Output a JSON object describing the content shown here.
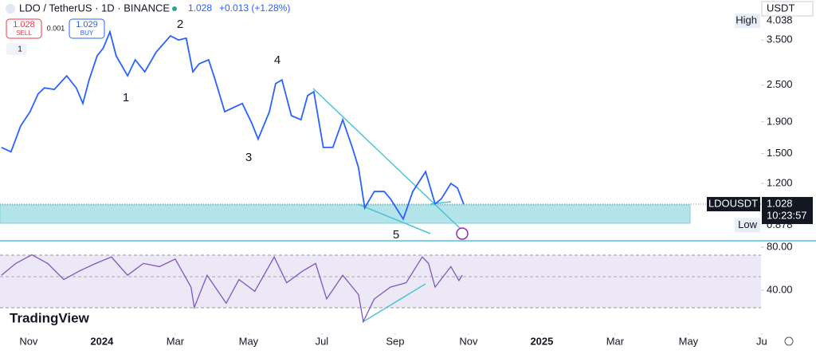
{
  "header": {
    "symbol": "LDO / TetherUS · 1D · BINANCE",
    "price": "1.028",
    "change": "+0.013 (+1.28%)",
    "sell_price": "1.028",
    "sell": "SELL",
    "spread": "0.001",
    "buy_price": "1.029",
    "buy": "BUY",
    "interval": "1",
    "currency": "USDT",
    "logo": "TradingView"
  },
  "chart_data": [
    {
      "type": "line",
      "log_scale": true,
      "grid": false,
      "color": "#2962ff",
      "x": [
        -0.74,
        -0.48,
        -0.22,
        0.04,
        0.26,
        0.43,
        0.7,
        1.04,
        1.3,
        1.48,
        1.65,
        1.87,
        2.04,
        2.22,
        2.39,
        2.7,
        2.91,
        3.17,
        3.48,
        3.87,
        4.09,
        4.3,
        4.48,
        4.65,
        4.91,
        5.09,
        5.35,
        5.57,
        5.83,
        6.09,
        6.26,
        6.57,
        6.74,
        6.91,
        7.17,
        7.43,
        7.61,
        7.78,
        8.04,
        8.3,
        8.57,
        8.83,
        9.0,
        9.17,
        9.43,
        9.7,
        9.87,
        10.22,
        10.48,
        10.83,
        11.09,
        11.26,
        11.52,
        11.7,
        11.87
      ],
      "values": [
        1.57,
        1.52,
        1.84,
        2.05,
        2.34,
        2.45,
        2.42,
        2.68,
        2.45,
        2.18,
        2.6,
        3.11,
        3.3,
        3.72,
        3.11,
        2.68,
        3.02,
        2.76,
        3.2,
        3.61,
        3.5,
        3.55,
        2.76,
        2.93,
        3.02,
        2.6,
        2.05,
        2.11,
        2.18,
        1.88,
        1.67,
        2.05,
        2.53,
        2.6,
        1.99,
        1.93,
        2.31,
        2.38,
        1.57,
        1.57,
        1.93,
        1.57,
        1.35,
        1.0,
        1.13,
        1.13,
        1.07,
        0.92,
        1.13,
        1.31,
        1.03,
        1.07,
        1.2,
        1.16,
        1.028
      ],
      "xlim": [
        -0.78,
        19.98
      ],
      "ylim": [
        0.782,
        4.72
      ],
      "xticks": [
        {
          "value": 0,
          "label": "Nov"
        },
        {
          "value": 2,
          "label": "2024"
        },
        {
          "value": 4,
          "label": "Mar"
        },
        {
          "value": 6,
          "label": "May"
        },
        {
          "value": 8,
          "label": "Jul"
        },
        {
          "value": 10,
          "label": "Sep"
        },
        {
          "value": 12,
          "label": "Nov"
        },
        {
          "value": 14,
          "label": "2025"
        },
        {
          "value": 16,
          "label": "Mar"
        },
        {
          "value": 18,
          "label": "May"
        },
        {
          "value": 20,
          "label": "Ju"
        }
      ],
      "yticks": [
        {
          "value": 1.2,
          "label": "1.200"
        },
        {
          "value": 1.5,
          "label": "1.500"
        },
        {
          "value": 1.9,
          "label": "1.900"
        },
        {
          "value": 2.5,
          "label": "2.500"
        },
        {
          "value": 3.5,
          "label": "3.500"
        }
      ],
      "high": {
        "label": "High",
        "value": 4.038
      },
      "low": {
        "label": "Low",
        "value": 0.878
      },
      "last": {
        "symbol": "LDOUSDT",
        "value": 1.028,
        "countdown": "10:23:57"
      },
      "annotations": [
        "1",
        "2",
        "3",
        "4",
        "5"
      ]
    },
    {
      "type": "line",
      "color": "#7e57c2",
      "x": [
        -0.74,
        -0.35,
        0.09,
        0.52,
        0.96,
        1.39,
        1.83,
        2.26,
        2.7,
        3.13,
        3.57,
        4.0,
        4.43,
        4.52,
        4.87,
        5.39,
        5.74,
        6.17,
        6.7,
        7.04,
        7.48,
        7.83,
        8.13,
        8.57,
        9.0,
        9.13,
        9.43,
        9.87,
        10.3,
        10.74,
        10.91,
        11.09,
        11.52,
        11.74,
        11.83
      ],
      "values": [
        54,
        65,
        73,
        65,
        50,
        58,
        65,
        71,
        54,
        65,
        62,
        69,
        43,
        24,
        54,
        28,
        50,
        39,
        71,
        47,
        58,
        65,
        32,
        54,
        36,
        11,
        32,
        43,
        47,
        71,
        65,
        43,
        62,
        49,
        54
      ],
      "xlim": [
        -0.78,
        19.98
      ],
      "ylim": [
        6,
        86
      ],
      "yticks": [
        {
          "value": 80,
          "label": "80.00"
        },
        {
          "value": 40,
          "label": "40.00"
        }
      ]
    }
  ]
}
